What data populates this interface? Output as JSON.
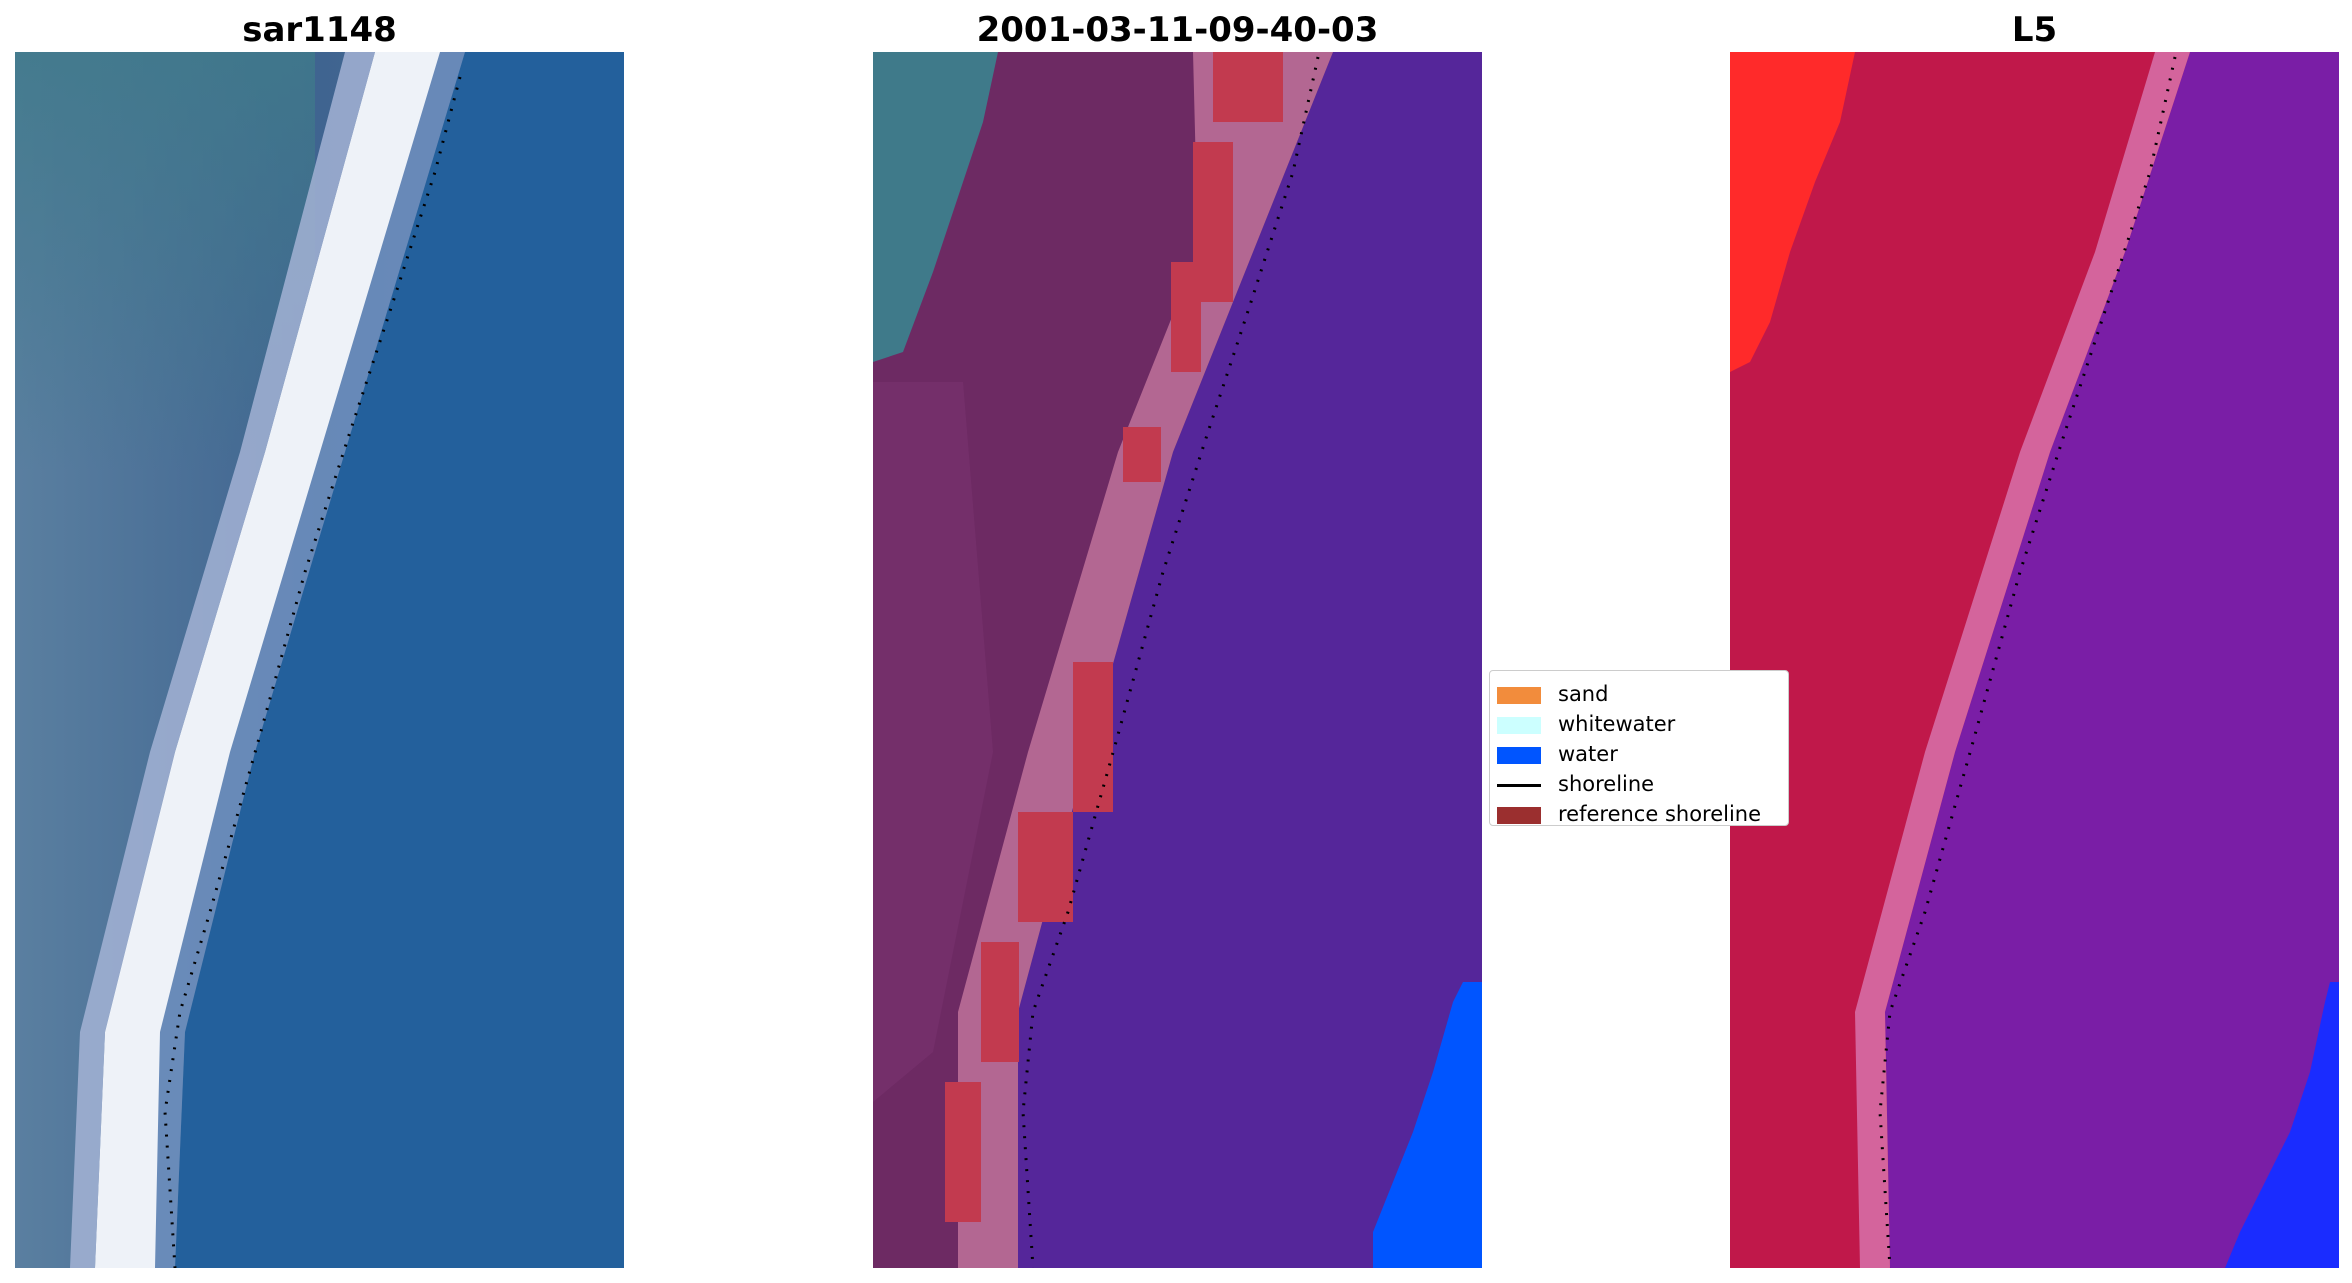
{
  "panels": [
    {
      "title": "sar1148",
      "type": "rgb-image"
    },
    {
      "title": "2001-03-11-09-40-03",
      "type": "classified-image"
    },
    {
      "title": "L5",
      "type": "band-composite-image"
    }
  ],
  "legend": {
    "placement": "center",
    "items": [
      {
        "label": "sand",
        "kind": "patch",
        "color": "#f28c3c"
      },
      {
        "label": "whitewater",
        "kind": "patch",
        "color": "#ccffff"
      },
      {
        "label": "water",
        "kind": "patch",
        "color": "#0055ff"
      },
      {
        "label": "shoreline",
        "kind": "line",
        "color": "#000000"
      },
      {
        "label": "reference shoreline",
        "kind": "patch",
        "color": "#9b2f2f"
      }
    ]
  },
  "colors": {
    "sar_land": "#3f6490",
    "sar_water": "#23609c",
    "sar_whitewater": "#f2f4f8",
    "class_land": "#6d2a63",
    "class_water": "#55269a",
    "class_ref_shoreline": "#c23a4f",
    "class_water_blue": "#0055ff",
    "class_landtop": "#3f7a8a",
    "l5_land": "#c0184a",
    "l5_water": "#7a1ea6",
    "l5_bright": "#ff2a2a",
    "l5_water_blue": "#1a2cff"
  }
}
